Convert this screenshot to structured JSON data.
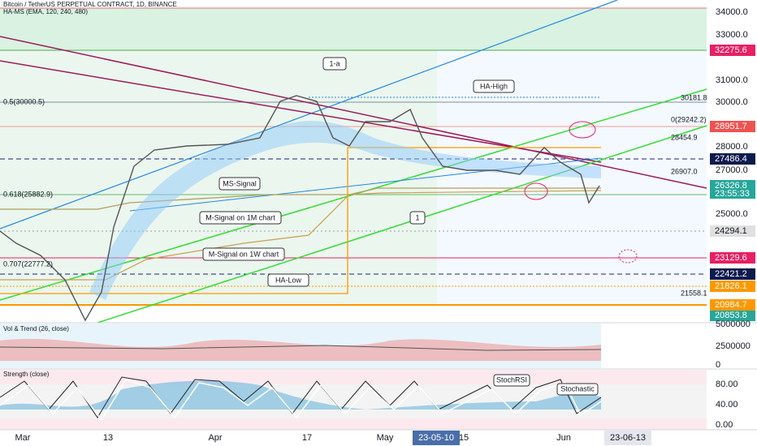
{
  "header": {
    "symbol": "Bitcoin / TetherUS PERPETUAL CONTRACT, 1D, BINANCE",
    "indicator": "HA-MS (EMA, 120, 240, 480)"
  },
  "annotations": [
    "1-a",
    "HA-High",
    "MS-Signal",
    "M-Signal on 1M chart",
    "1",
    "M-Signal on 1W chart",
    "HA-Low",
    "StochRSI",
    "Stochastic"
  ],
  "levels": [
    "0.5(30000.5)",
    "0.618(25882.9)",
    "0.707(22777.2)",
    "30181.8",
    "0(29242.2)",
    "28454.9",
    "26907.0",
    "21558.1"
  ],
  "price_axis": [
    "34000.0",
    "33000.0",
    "31000.0",
    "30000.0",
    "28000.0",
    "27000.0",
    "25000.0"
  ],
  "badges": [
    "32275.6",
    "28951.7",
    "27486.4",
    "26326.8",
    "23:55:33",
    "24294.1",
    "23129.6",
    "22421.2",
    "21826.1",
    "20984.7",
    "20853.8"
  ],
  "panes": [
    {
      "title": "Vol & Trend (26, close)",
      "ticks": [
        "5000000",
        "2500000",
        "0"
      ]
    },
    {
      "title": "Strength (close)",
      "ticks": [
        "80.00",
        "40.00",
        "0.00"
      ]
    }
  ],
  "time_axis": [
    "Mar",
    "13",
    "Apr",
    "17",
    "May",
    "23-05-10",
    "15",
    "Jun",
    "23-06-13"
  ]
}
